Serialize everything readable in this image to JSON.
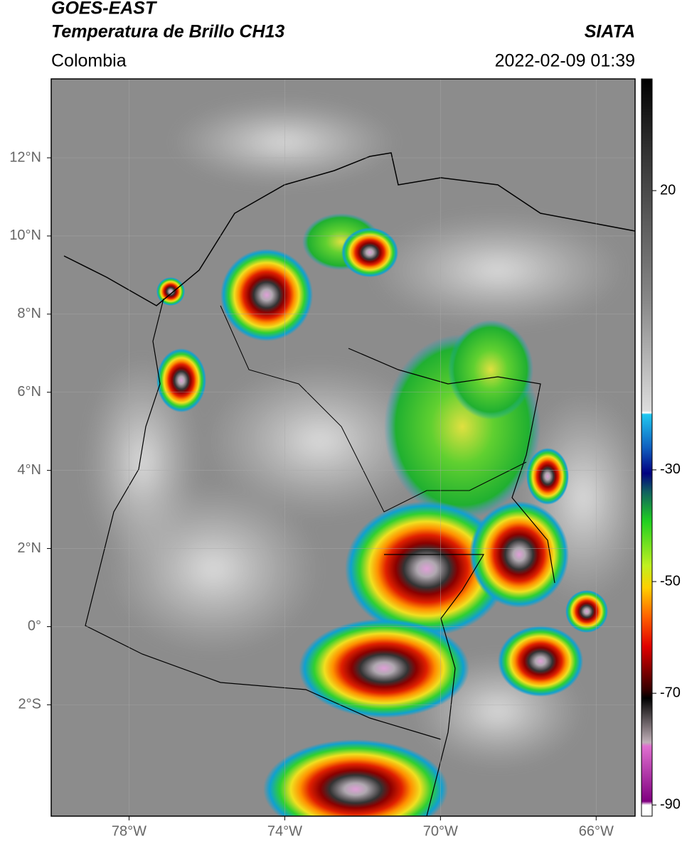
{
  "header": {
    "title": "GOES-EAST",
    "subtitle": "Temperatura de Brillo CH13",
    "region": "Colombia",
    "source": "SIATA",
    "datetime": "2022-02-09 01:39"
  },
  "map": {
    "lonlim": [
      -80,
      -65
    ],
    "latlim": [
      -4.85,
      14.02
    ],
    "lonticks": [
      {
        "value": -78,
        "label": "78°W"
      },
      {
        "value": -74,
        "label": "74°W"
      },
      {
        "value": -70,
        "label": "70°W"
      },
      {
        "value": -66,
        "label": "66°W"
      }
    ],
    "latticks": [
      {
        "value": 12,
        "label": "12°N"
      },
      {
        "value": 10,
        "label": "10°N"
      },
      {
        "value": 8,
        "label": "8°N"
      },
      {
        "value": 6,
        "label": "6°N"
      },
      {
        "value": 4,
        "label": "4°N"
      },
      {
        "value": 2,
        "label": "2°N"
      },
      {
        "value": 0,
        "label": "0°"
      },
      {
        "value": -2,
        "label": "2°S"
      }
    ],
    "grid": true
  },
  "colorbar": {
    "lim": [
      -92,
      40
    ],
    "ticks": [
      20,
      -30,
      -50,
      -70,
      -90
    ]
  }
}
